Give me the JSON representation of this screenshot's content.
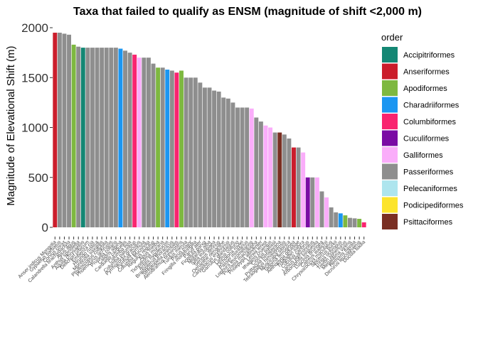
{
  "chart_data": {
    "type": "bar",
    "title": "Taxa that failed to qualify as ENSM (magnitude of shift <2,000 m)",
    "xlabel": "",
    "ylabel": "Magnitude of Elevational Shift (m)",
    "ylim": [
      0,
      2000
    ],
    "yticks": [
      0,
      500,
      1000,
      1500,
      2000
    ],
    "grid": false,
    "legend": {
      "title": "order",
      "placement": "right",
      "entries": [
        {
          "label": "Accipitriformes",
          "color": "#148774"
        },
        {
          "label": "Anseriformes",
          "color": "#CB1D2B"
        },
        {
          "label": "Apodiformes",
          "color": "#7EB840"
        },
        {
          "label": "Charadriiformes",
          "color": "#1B96F1"
        },
        {
          "label": "Columbiformes",
          "color": "#F9246F"
        },
        {
          "label": "Cuculiformes",
          "color": "#7A0BA4"
        },
        {
          "label": "Galliformes",
          "color": "#FAADFA"
        },
        {
          "label": "Passeriformes",
          "color": "#8E8E8E"
        },
        {
          "label": "Pelecaniformes",
          "color": "#AEE5EE"
        },
        {
          "label": "Podicipediformes",
          "color": "#FCE42C"
        },
        {
          "label": "Psittaciformes",
          "color": "#7A2F23"
        }
      ]
    },
    "bars": [
      {
        "label": "Anser indicus Mongolia",
        "order": "Anseriformes",
        "value": 1950
      },
      {
        "label": "Gypaetus barbatus",
        "order": "Passeriformes",
        "value": 1950
      },
      {
        "label": "Corvus corax",
        "order": "Passeriformes",
        "value": 1940
      },
      {
        "label": "Calandrella brachydactyla",
        "order": "Passeriformes",
        "value": 1930
      },
      {
        "label": "Apus apus",
        "order": "Apodiformes",
        "value": 1830
      },
      {
        "label": "Anthus spinoletta",
        "order": "Passeriformes",
        "value": 1810
      },
      {
        "label": "Aquila chrysaetos",
        "order": "Accipitriformes",
        "value": 1800
      },
      {
        "label": "Delichon urbicum",
        "order": "Passeriformes",
        "value": 1800
      },
      {
        "label": "Emberiza cia",
        "order": "Passeriformes",
        "value": 1800
      },
      {
        "label": "Hirundo rustica",
        "order": "Passeriformes",
        "value": 1800
      },
      {
        "label": "Monticola saxatilis",
        "order": "Passeriformes",
        "value": 1800
      },
      {
        "label": "Phylloscopus collybita",
        "order": "Passeriformes",
        "value": 1800
      },
      {
        "label": "Phoenicurus ochruros",
        "order": "Passeriformes",
        "value": 1800
      },
      {
        "label": "Prunella collaris",
        "order": "Passeriformes",
        "value": 1800
      },
      {
        "label": "Calidris alpina",
        "order": "Charadriiformes",
        "value": 1790
      },
      {
        "label": "Carduelis carduelis",
        "order": "Passeriformes",
        "value": 1770
      },
      {
        "label": "Columba livia",
        "order": "Passeriformes",
        "value": 1750
      },
      {
        "label": "Columba palumbus",
        "order": "Columbiformes",
        "value": 1730
      },
      {
        "label": "Pyrrhocorax graculus",
        "order": "Galliformes",
        "value": 1700
      },
      {
        "label": "Pyrrhula pyrrhula",
        "order": "Passeriformes",
        "value": 1700
      },
      {
        "label": "Columba leuconota",
        "order": "Passeriformes",
        "value": 1700
      },
      {
        "label": "Regulus regulus",
        "order": "Passeriformes",
        "value": 1640
      },
      {
        "label": "Apus melba",
        "order": "Apodiformes",
        "value": 1600
      },
      {
        "label": "Tichodroma muraria",
        "order": "Passeriformes",
        "value": 1600
      },
      {
        "label": "Actitis hypoleucos",
        "order": "Charadriiformes",
        "value": 1580
      },
      {
        "label": "Bradypterus thoracicus",
        "order": "Passeriformes",
        "value": 1570
      },
      {
        "label": "Streptopelia orientalis",
        "order": "Columbiformes",
        "value": 1550
      },
      {
        "label": "Aerodramus brevirostris",
        "order": "Apodiformes",
        "value": 1570
      },
      {
        "label": "Turdus merula",
        "order": "Passeriformes",
        "value": 1500
      },
      {
        "label": "Parus major",
        "order": "Passeriformes",
        "value": 1500
      },
      {
        "label": "Fringilla montifringilla",
        "order": "Passeriformes",
        "value": 1500
      },
      {
        "label": "Parus ater",
        "order": "Passeriformes",
        "value": 1450
      },
      {
        "label": "Ficedula parva",
        "order": "Passeriformes",
        "value": 1400
      },
      {
        "label": "Motacilla alba",
        "order": "Passeriformes",
        "value": 1400
      },
      {
        "label": "Sitta europaea",
        "order": "Passeriformes",
        "value": 1370
      },
      {
        "label": "Serinus serinus",
        "order": "Passeriformes",
        "value": 1360
      },
      {
        "label": "Oenanthe oenanthe",
        "order": "Passeriformes",
        "value": 1300
      },
      {
        "label": "Carpodacus erythrinus",
        "order": "Passeriformes",
        "value": 1290
      },
      {
        "label": "Garrulus glandarius",
        "order": "Passeriformes",
        "value": 1250
      },
      {
        "label": "Lanius collurio",
        "order": "Passeriformes",
        "value": 1200
      },
      {
        "label": "Ochotona roylei",
        "order": "Passeriformes",
        "value": 1200
      },
      {
        "label": "Passer montanus",
        "order": "Passeriformes",
        "value": 1200
      },
      {
        "label": "Lophura leucomelanos",
        "order": "Galliformes",
        "value": 1190
      },
      {
        "label": "Pucrasia macrolopha",
        "order": "Passeriformes",
        "value": 1100
      },
      {
        "label": "Pnoepyga albiventer",
        "order": "Passeriformes",
        "value": 1060
      },
      {
        "label": "Lerwa lerwa",
        "order": "Galliformes",
        "value": 1020
      },
      {
        "label": "Ithaginis cruentus",
        "order": "Galliformes",
        "value": 1000
      },
      {
        "label": "Cinclus pallasii",
        "order": "Passeriformes",
        "value": 950
      },
      {
        "label": "Psittacula himalayana",
        "order": "Psittaciformes",
        "value": 950
      },
      {
        "label": "Tetraogallus himalayensis",
        "order": "Passeriformes",
        "value": 930
      },
      {
        "label": "Muscicapa sibirica",
        "order": "Passeriformes",
        "value": 890
      },
      {
        "label": "Tadorna ferruginea",
        "order": "Anseriformes",
        "value": 800
      },
      {
        "label": "Aethopyga gouldiae",
        "order": "Passeriformes",
        "value": 800
      },
      {
        "label": "Tragopan satyra",
        "order": "Galliformes",
        "value": 750
      },
      {
        "label": "Cuculus canorus",
        "order": "Cuculiformes",
        "value": 500
      },
      {
        "label": "Lanius tephronotus",
        "order": "Passeriformes",
        "value": 500
      },
      {
        "label": "Arborophila torqueola",
        "order": "Galliformes",
        "value": 500
      },
      {
        "label": "Luscinia brunnea",
        "order": "Passeriformes",
        "value": 360
      },
      {
        "label": "Catreus wallichii",
        "order": "Galliformes",
        "value": 300
      },
      {
        "label": "Chrysococcyx maculatus",
        "order": "Passeriformes",
        "value": 200
      },
      {
        "label": "Seicercus burkii",
        "order": "Passeriformes",
        "value": 150
      },
      {
        "label": "Tringa ochropus",
        "order": "Charadriiformes",
        "value": 140
      },
      {
        "label": "Treron sphenurus",
        "order": "Apodiformes",
        "value": 120
      },
      {
        "label": "Megalaima virens",
        "order": "Passeriformes",
        "value": 95
      },
      {
        "label": "Hemixos flavala",
        "order": "Passeriformes",
        "value": 90
      },
      {
        "label": "Dicrurus leucophaeus",
        "order": "Apodiformes",
        "value": 85
      },
      {
        "label": "Ducula badia",
        "order": "Columbiformes",
        "value": 50
      }
    ]
  }
}
